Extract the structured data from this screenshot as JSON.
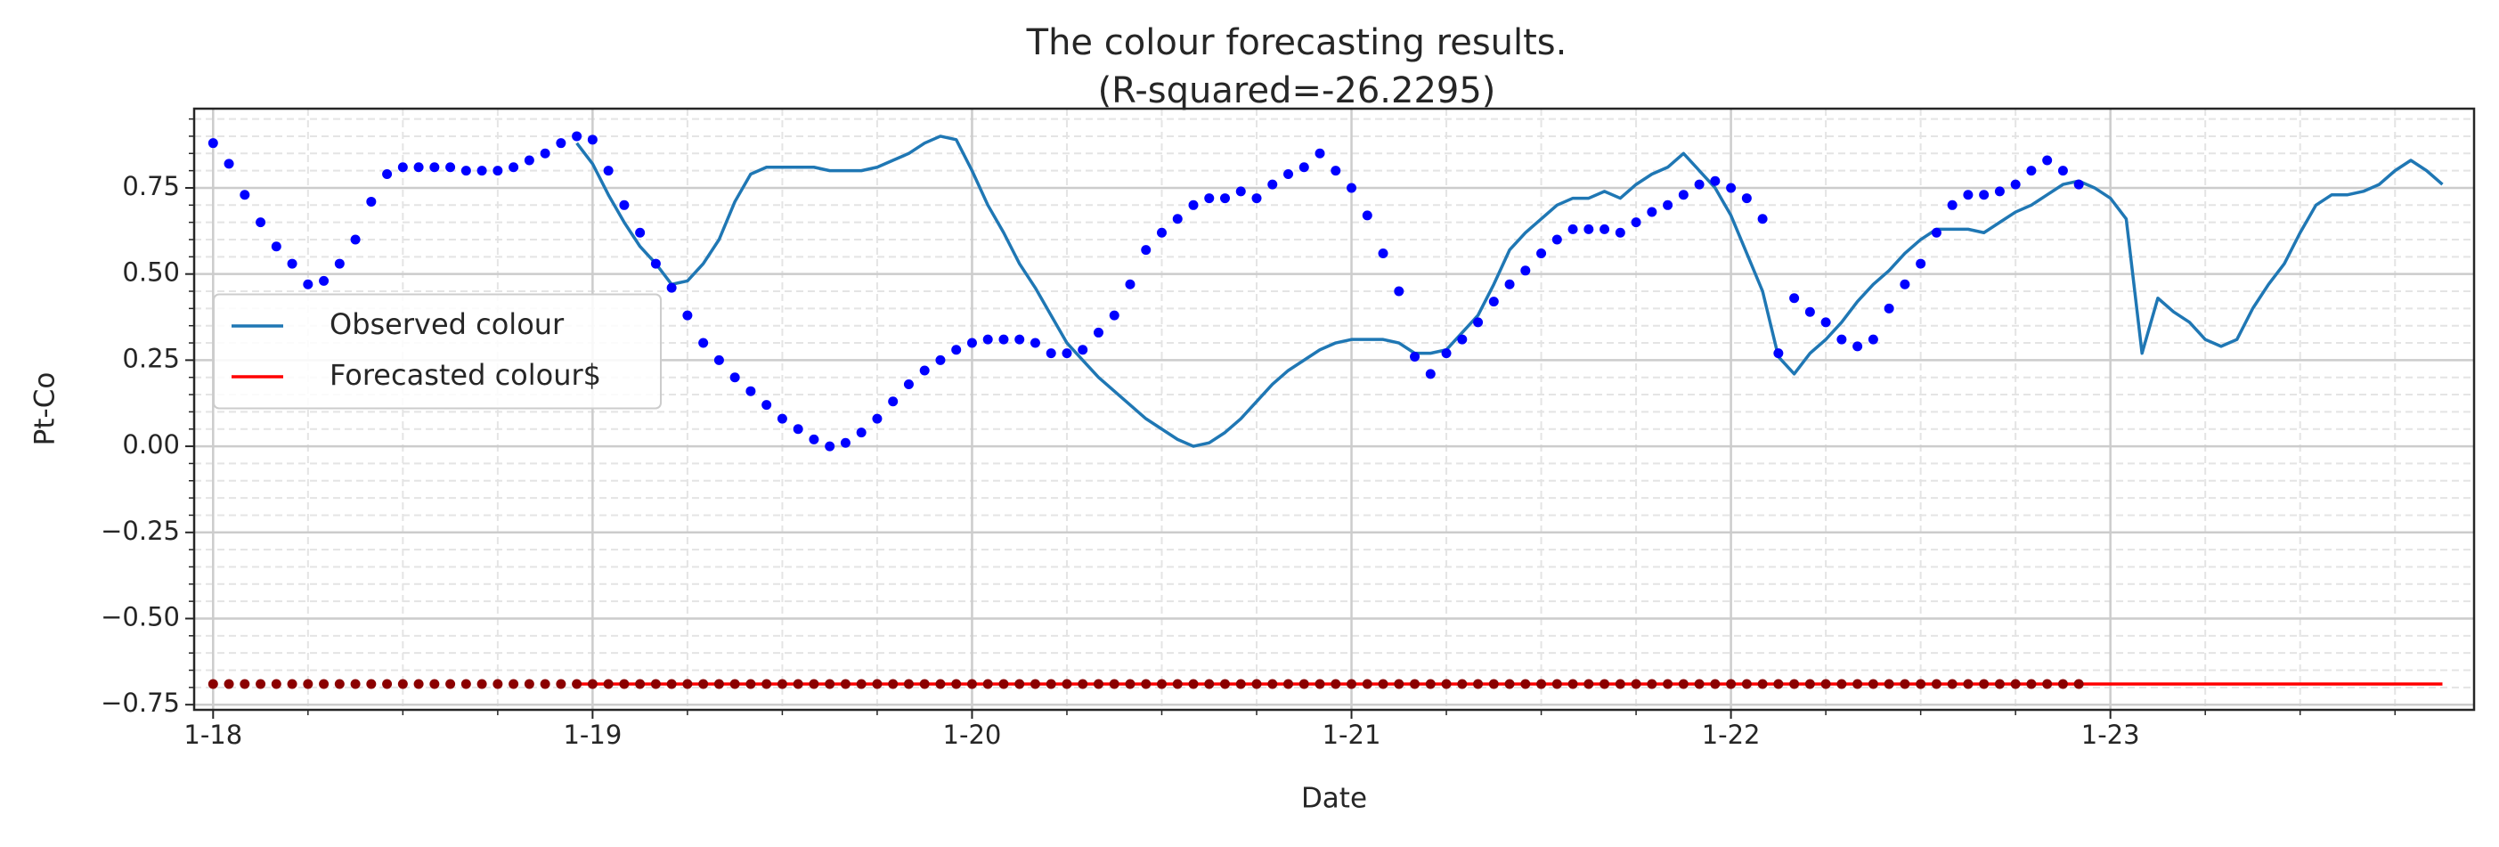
{
  "chart_data": {
    "type": "line",
    "title": "The colour forecasting results.",
    "subtitle": "(R-squared=-26.2295)",
    "xlabel": "Date",
    "ylabel": "Pt-Co",
    "xlim": [
      -1.2,
      143
    ],
    "ylim": [
      -0.765,
      0.98
    ],
    "xticks": [
      {
        "value": 0,
        "label": "1-18"
      },
      {
        "value": 24,
        "label": "1-19"
      },
      {
        "value": 48,
        "label": "1-20"
      },
      {
        "value": 72,
        "label": "1-21"
      },
      {
        "value": 96,
        "label": "1-22"
      },
      {
        "value": 120,
        "label": "1-23"
      }
    ],
    "yticks": [
      {
        "value": -0.75,
        "label": "−0.75"
      },
      {
        "value": -0.5,
        "label": "−0.50"
      },
      {
        "value": -0.25,
        "label": "−0.25"
      },
      {
        "value": 0,
        "label": "0.00"
      },
      {
        "value": 0.25,
        "label": "0.25"
      },
      {
        "value": 0.5,
        "label": "0.50"
      },
      0.75
    ],
    "x_minor_ticks": [
      6,
      12,
      18,
      30,
      36,
      42,
      54,
      60,
      66,
      78,
      84,
      90,
      102,
      108,
      114,
      126,
      132,
      138
    ],
    "y_minor_ticks": [
      -0.7,
      -0.65,
      -0.6,
      -0.55,
      -0.45,
      -0.4,
      -0.35,
      -0.3,
      -0.2,
      -0.15,
      -0.1,
      -0.05,
      0.05,
      0.1,
      0.15,
      0.2,
      0.3,
      0.35,
      0.4,
      0.45,
      0.55,
      0.6,
      0.65,
      0.7,
      0.8,
      0.85,
      0.9,
      0.95
    ],
    "grid": true,
    "legend": "center left",
    "series": [
      {
        "name": "Observed colour",
        "color": "#1f77b4",
        "style": "line",
        "x": [
          23,
          24,
          25,
          26,
          27,
          28,
          29,
          30,
          31,
          32,
          33,
          34,
          35,
          36,
          37,
          38,
          39,
          40,
          41,
          42,
          43,
          44,
          45,
          46,
          47,
          48,
          49,
          50,
          51,
          52,
          53,
          54,
          55,
          56,
          57,
          58,
          59,
          60,
          61,
          62,
          63,
          64,
          65,
          66,
          67,
          68,
          69,
          70,
          71,
          72,
          73,
          74,
          75,
          76,
          77,
          78,
          79,
          80,
          81,
          82,
          83,
          84,
          85,
          86,
          87,
          88,
          89,
          90,
          91,
          92,
          93,
          94,
          95,
          96,
          97,
          98,
          99,
          100,
          101,
          102,
          103,
          104,
          105,
          106,
          107,
          108,
          109,
          110,
          111,
          112,
          113,
          114,
          115,
          116,
          117,
          118,
          119,
          120,
          121,
          122,
          123,
          124,
          125,
          126,
          127,
          128,
          129,
          130,
          131,
          132,
          133,
          134,
          135,
          136,
          137,
          138,
          139,
          140,
          141
        ],
        "values": [
          0.88,
          0.82,
          0.73,
          0.65,
          0.58,
          0.53,
          0.47,
          0.48,
          0.53,
          0.6,
          0.71,
          0.79,
          0.81,
          0.81,
          0.81,
          0.81,
          0.8,
          0.8,
          0.8,
          0.81,
          0.83,
          0.85,
          0.88,
          0.9,
          0.89,
          0.8,
          0.7,
          0.62,
          0.53,
          0.46,
          0.38,
          0.3,
          0.25,
          0.2,
          0.16,
          0.12,
          0.08,
          0.05,
          0.02,
          0.0,
          0.01,
          0.04,
          0.08,
          0.13,
          0.18,
          0.22,
          0.25,
          0.28,
          0.3,
          0.31,
          0.31,
          0.31,
          0.3,
          0.27,
          0.27,
          0.28,
          0.33,
          0.38,
          0.47,
          0.57,
          0.62,
          0.66,
          0.7,
          0.72,
          0.72,
          0.74,
          0.72,
          0.76,
          0.79,
          0.81,
          0.85,
          0.8,
          0.75,
          0.67,
          0.56,
          0.45,
          0.26,
          0.21,
          0.27,
          0.31,
          0.36,
          0.42,
          0.47,
          0.51,
          0.56,
          0.6,
          0.63,
          0.63,
          0.63,
          0.62,
          0.65,
          0.68,
          0.7,
          0.73,
          0.76,
          0.77,
          0.75,
          0.72,
          0.66,
          0.27,
          0.43,
          0.39,
          0.36,
          0.31,
          0.29,
          0.31,
          0.4,
          0.47,
          0.53,
          0.62,
          0.7,
          0.73,
          0.73,
          0.74,
          0.76,
          0.8,
          0.83,
          0.8,
          0.76
        ]
      },
      {
        "name": "Forecasted colour$",
        "color": "#ff0000",
        "style": "line",
        "x": [
          23,
          24,
          25,
          26,
          27,
          28,
          29,
          30,
          31,
          32,
          33,
          34,
          35,
          36,
          37,
          38,
          39,
          40,
          41,
          42,
          43,
          44,
          45,
          46,
          47,
          48,
          49,
          50,
          51,
          52,
          53,
          54,
          55,
          56,
          57,
          58,
          59,
          60,
          61,
          62,
          63,
          64,
          65,
          66,
          67,
          68,
          69,
          70,
          71,
          72,
          73,
          74,
          75,
          76,
          77,
          78,
          79,
          80,
          81,
          82,
          83,
          84,
          85,
          86,
          87,
          88,
          89,
          90,
          91,
          92,
          93,
          94,
          95,
          96,
          97,
          98,
          99,
          100,
          101,
          102,
          103,
          104,
          105,
          106,
          107,
          108,
          109,
          110,
          111,
          112,
          113,
          114,
          115,
          116,
          117,
          118,
          119,
          120,
          121,
          122,
          123,
          124,
          125,
          126,
          127,
          128,
          129,
          130,
          131,
          132,
          133,
          134,
          135,
          136,
          137,
          138,
          139,
          140,
          141
        ],
        "values": [
          -0.69,
          -0.69,
          -0.69,
          -0.69,
          -0.69,
          -0.69,
          -0.69,
          -0.69,
          -0.69,
          -0.69,
          -0.69,
          -0.69,
          -0.69,
          -0.69,
          -0.69,
          -0.69,
          -0.69,
          -0.69,
          -0.69,
          -0.69,
          -0.69,
          -0.69,
          -0.69,
          -0.69,
          -0.69,
          -0.69,
          -0.69,
          -0.69,
          -0.69,
          -0.69,
          -0.69,
          -0.69,
          -0.69,
          -0.69,
          -0.69,
          -0.69,
          -0.69,
          -0.69,
          -0.69,
          -0.69,
          -0.69,
          -0.69,
          -0.69,
          -0.69,
          -0.69,
          -0.69,
          -0.69,
          -0.69,
          -0.69,
          -0.69,
          -0.69,
          -0.69,
          -0.69,
          -0.69,
          -0.69,
          -0.69,
          -0.69,
          -0.69,
          -0.69,
          -0.69,
          -0.69,
          -0.69,
          -0.69,
          -0.69,
          -0.69,
          -0.69,
          -0.69,
          -0.69,
          -0.69,
          -0.69,
          -0.69,
          -0.69,
          -0.69,
          -0.69,
          -0.69,
          -0.69,
          -0.69,
          -0.69,
          -0.69,
          -0.69,
          -0.69,
          -0.69,
          -0.69,
          -0.69,
          -0.69,
          -0.69,
          -0.69,
          -0.69,
          -0.69,
          -0.69,
          -0.69,
          -0.69,
          -0.69,
          -0.69,
          -0.69,
          -0.69,
          -0.69,
          -0.69,
          -0.69,
          -0.69,
          -0.69,
          -0.69,
          -0.69,
          -0.69,
          -0.69,
          -0.69,
          -0.69,
          -0.69,
          -0.69,
          -0.69,
          -0.69,
          -0.69,
          -0.69,
          -0.69,
          -0.69,
          -0.69,
          -0.69,
          -0.69,
          -0.69
        ]
      },
      {
        "color": "#0000ff",
        "style": "dots",
        "x": [
          0,
          1,
          2,
          3,
          4,
          5,
          6,
          7,
          8,
          9,
          10,
          11,
          12,
          13,
          14,
          15,
          16,
          17,
          18,
          19,
          20,
          21,
          22,
          23,
          24,
          25,
          26,
          27,
          28,
          29,
          30,
          31,
          32,
          33,
          34,
          35,
          36,
          37,
          38,
          39,
          40,
          41,
          42,
          43,
          44,
          45,
          46,
          47,
          48,
          49,
          50,
          51,
          52,
          53,
          54,
          55,
          56,
          57,
          58,
          59,
          60,
          61,
          62,
          63,
          64,
          65,
          66,
          67,
          68,
          69,
          70,
          71,
          72,
          73,
          74,
          75,
          76,
          77,
          78,
          79,
          80,
          81,
          82,
          83,
          84,
          85,
          86,
          87,
          88,
          89,
          90,
          91,
          92,
          93,
          94,
          95,
          96,
          97,
          98,
          99,
          100,
          101,
          102,
          103,
          104,
          105,
          106,
          107,
          108,
          109,
          110,
          111,
          112,
          113,
          114,
          115,
          116,
          117,
          118
        ],
        "values": [
          0.88,
          0.82,
          0.73,
          0.65,
          0.58,
          0.53,
          0.47,
          0.48,
          0.53,
          0.6,
          0.71,
          0.79,
          0.81,
          0.81,
          0.81,
          0.81,
          0.8,
          0.8,
          0.8,
          0.81,
          0.83,
          0.85,
          0.88,
          0.9,
          0.89,
          0.8,
          0.7,
          0.62,
          0.53,
          0.46,
          0.38,
          0.3,
          0.25,
          0.2,
          0.16,
          0.12,
          0.08,
          0.05,
          0.02,
          0.0,
          0.01,
          0.04,
          0.08,
          0.13,
          0.18,
          0.22,
          0.25,
          0.28,
          0.3,
          0.31,
          0.31,
          0.31,
          0.3,
          0.27,
          0.27,
          0.28,
          0.33,
          0.38,
          0.47,
          0.57,
          0.62,
          0.66,
          0.7,
          0.72,
          0.72,
          0.74,
          0.72,
          0.76,
          0.79,
          0.81,
          0.85,
          0.8,
          0.75,
          0.67,
          0.56,
          0.45,
          0.26,
          0.21,
          0.27,
          0.31,
          0.36,
          0.42,
          0.47,
          0.51,
          0.56,
          0.6,
          0.63,
          0.63,
          0.63,
          0.62,
          0.65,
          0.68,
          0.7,
          0.73,
          0.76,
          0.77,
          0.75,
          0.72,
          0.66,
          0.27,
          0.43,
          0.39,
          0.36,
          0.31,
          0.29,
          0.31,
          0.4,
          0.47,
          0.53,
          0.62,
          0.7,
          0.73,
          0.73,
          0.74,
          0.76,
          0.8,
          0.83,
          0.8,
          0.76
        ]
      },
      {
        "color": "#8b0000",
        "style": "dots",
        "x": [
          0,
          1,
          2,
          3,
          4,
          5,
          6,
          7,
          8,
          9,
          10,
          11,
          12,
          13,
          14,
          15,
          16,
          17,
          18,
          19,
          20,
          21,
          22,
          23,
          24,
          25,
          26,
          27,
          28,
          29,
          30,
          31,
          32,
          33,
          34,
          35,
          36,
          37,
          38,
          39,
          40,
          41,
          42,
          43,
          44,
          45,
          46,
          47,
          48,
          49,
          50,
          51,
          52,
          53,
          54,
          55,
          56,
          57,
          58,
          59,
          60,
          61,
          62,
          63,
          64,
          65,
          66,
          67,
          68,
          69,
          70,
          71,
          72,
          73,
          74,
          75,
          76,
          77,
          78,
          79,
          80,
          81,
          82,
          83,
          84,
          85,
          86,
          87,
          88,
          89,
          90,
          91,
          92,
          93,
          94,
          95,
          96,
          97,
          98,
          99,
          100,
          101,
          102,
          103,
          104,
          105,
          106,
          107,
          108,
          109,
          110,
          111,
          112,
          113,
          114,
          115,
          116,
          117,
          118
        ],
        "values": [
          -0.69,
          -0.69,
          -0.69,
          -0.69,
          -0.69,
          -0.69,
          -0.69,
          -0.69,
          -0.69,
          -0.69,
          -0.69,
          -0.69,
          -0.69,
          -0.69,
          -0.69,
          -0.69,
          -0.69,
          -0.69,
          -0.69,
          -0.69,
          -0.69,
          -0.69,
          -0.69,
          -0.69,
          -0.69,
          -0.69,
          -0.69,
          -0.69,
          -0.69,
          -0.69,
          -0.69,
          -0.69,
          -0.69,
          -0.69,
          -0.69,
          -0.69,
          -0.69,
          -0.69,
          -0.69,
          -0.69,
          -0.69,
          -0.69,
          -0.69,
          -0.69,
          -0.69,
          -0.69,
          -0.69,
          -0.69,
          -0.69,
          -0.69,
          -0.69,
          -0.69,
          -0.69,
          -0.69,
          -0.69,
          -0.69,
          -0.69,
          -0.69,
          -0.69,
          -0.69,
          -0.69,
          -0.69,
          -0.69,
          -0.69,
          -0.69,
          -0.69,
          -0.69,
          -0.69,
          -0.69,
          -0.69,
          -0.69,
          -0.69,
          -0.69,
          -0.69,
          -0.69,
          -0.69,
          -0.69,
          -0.69,
          -0.69,
          -0.69,
          -0.69,
          -0.69,
          -0.69,
          -0.69,
          -0.69,
          -0.69,
          -0.69,
          -0.69,
          -0.69,
          -0.69,
          -0.69,
          -0.69,
          -0.69,
          -0.69,
          -0.69,
          -0.69,
          -0.69,
          -0.69,
          -0.69,
          -0.69,
          -0.69,
          -0.69,
          -0.69,
          -0.69,
          -0.69,
          -0.69,
          -0.69,
          -0.69,
          -0.69,
          -0.69,
          -0.69,
          -0.69,
          -0.69,
          -0.69,
          -0.69,
          -0.69,
          -0.69,
          -0.69,
          -0.69
        ]
      }
    ]
  }
}
